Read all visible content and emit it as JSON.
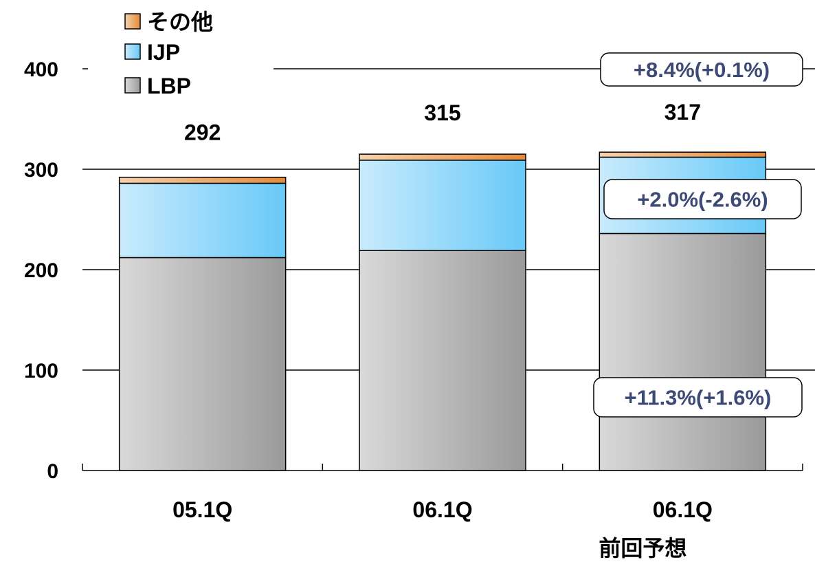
{
  "chart_data": {
    "type": "bar",
    "stacked": true,
    "categories": [
      "05.1Q",
      "06.1Q",
      "06.1Q"
    ],
    "category_sublabels": [
      "",
      "",
      "前回予想"
    ],
    "series": [
      {
        "name": "LBP",
        "values": [
          212,
          219,
          236
        ],
        "color": "#a8a8a8"
      },
      {
        "name": "IJP",
        "values": [
          74,
          90,
          76
        ],
        "color": "#8fd3f7"
      },
      {
        "name": "その他",
        "values": [
          6,
          6,
          5
        ],
        "color": "#e89a50"
      }
    ],
    "totals": [
      292,
      315,
      317
    ],
    "ylim": [
      0,
      400
    ],
    "yticks": [
      0,
      100,
      200,
      300,
      400
    ],
    "grid": true,
    "legend_position": "top-left",
    "annotations": [
      {
        "text": "+8.4%(+0.1%)",
        "series": "その他"
      },
      {
        "text": "+2.0%(-2.6%)",
        "series": "IJP"
      },
      {
        "text": "+11.3%(+1.6%)",
        "series": "LBP"
      }
    ]
  }
}
